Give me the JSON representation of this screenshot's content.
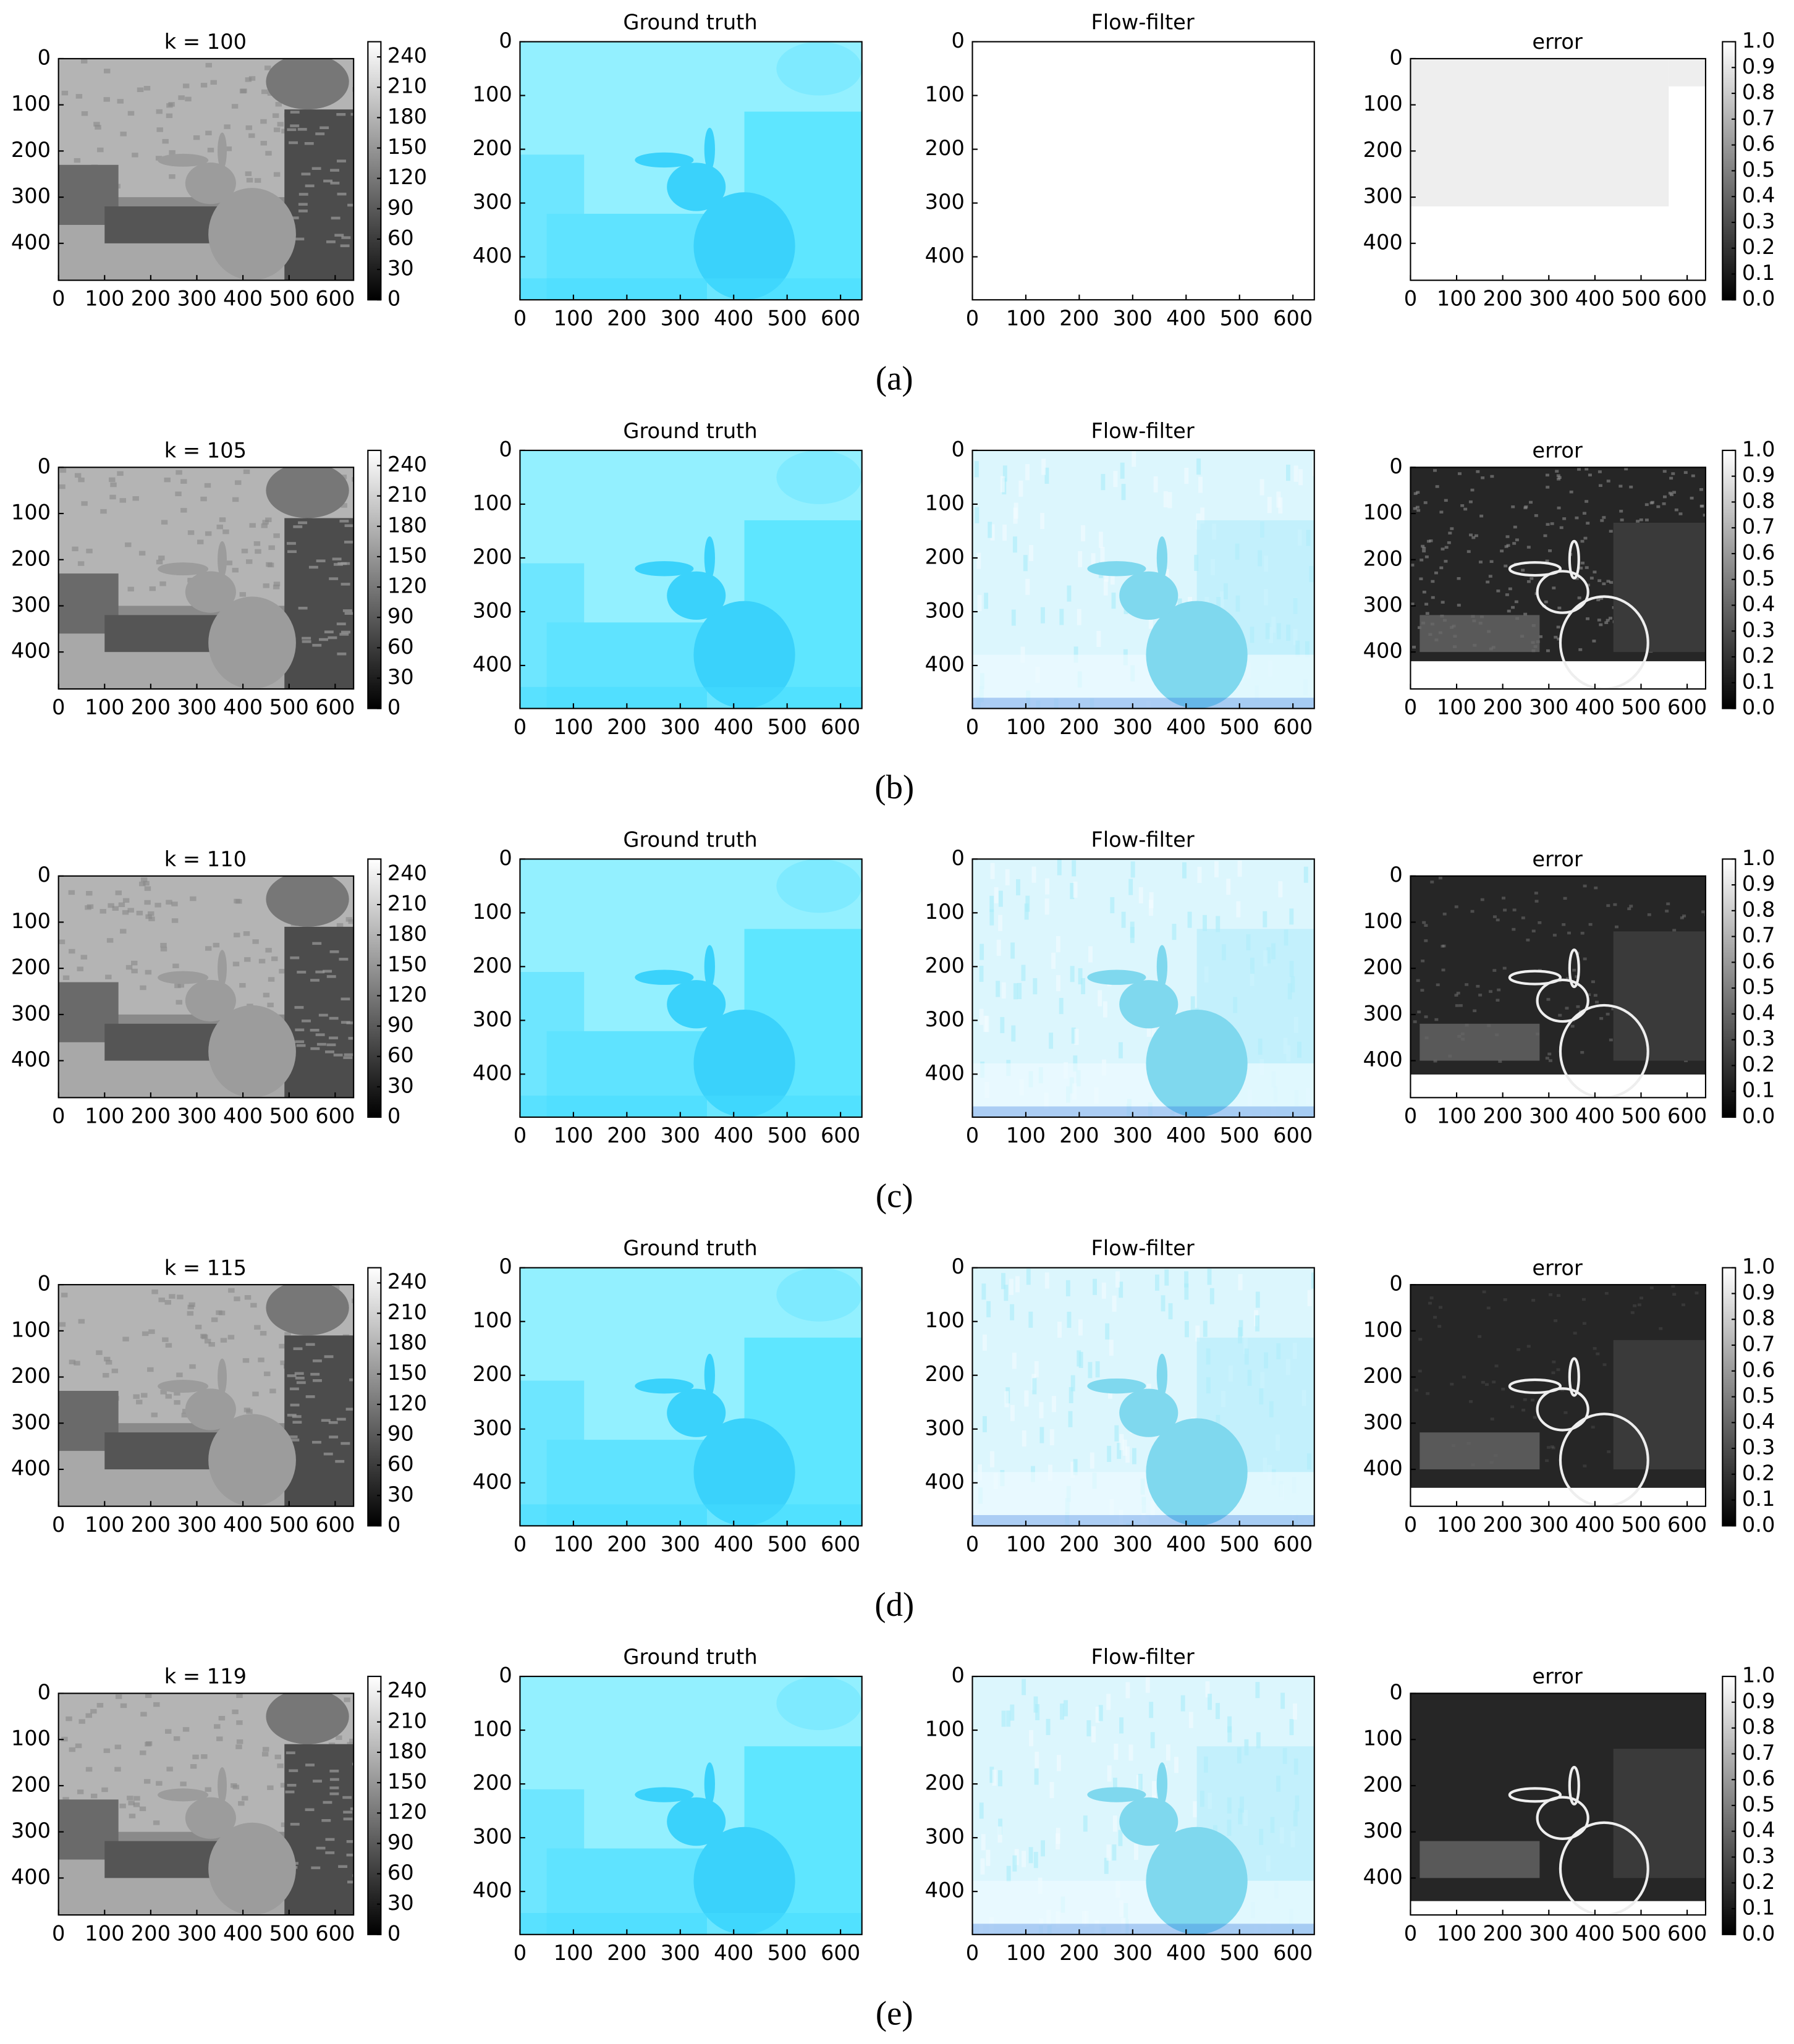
{
  "figure": {
    "image_xlim": [
      0,
      640
    ],
    "image_ylim": [
      480,
      0
    ],
    "xticks": [
      0,
      100,
      200,
      300,
      400,
      500,
      600
    ],
    "yticks": [
      0,
      100,
      200,
      300,
      400
    ],
    "intensity_colorbar": {
      "lim": [
        0,
        255
      ],
      "ticks": [
        0,
        30,
        60,
        90,
        120,
        150,
        180,
        210,
        240
      ]
    },
    "error_colorbar": {
      "lim": [
        0,
        1
      ],
      "ticks": [
        {
          "value": 0,
          "label": "0.0"
        },
        {
          "value": 0.1,
          "label": "0.1"
        },
        {
          "value": 0.2,
          "label": "0.2"
        },
        {
          "value": 0.3,
          "label": "0.3"
        },
        {
          "value": 0.4,
          "label": "0.4"
        },
        {
          "value": 0.5,
          "label": "0.5"
        },
        {
          "value": 0.6,
          "label": "0.6"
        },
        {
          "value": 0.7,
          "label": "0.7"
        },
        {
          "value": 0.8,
          "label": "0.8"
        },
        {
          "value": 0.9,
          "label": "0.9"
        },
        {
          "value": 1,
          "label": "1.0"
        }
      ]
    },
    "rows": [
      {
        "title": "k = 100",
        "panel_titles": [
          "Ground truth",
          "Flow-filter",
          "error"
        ],
        "caption": "(a)"
      },
      {
        "title": "k = 105",
        "panel_titles": [
          "Ground truth",
          "Flow-filter",
          "error"
        ],
        "caption": "(b)"
      },
      {
        "title": "k = 110",
        "panel_titles": [
          "Ground truth",
          "Flow-filter",
          "error"
        ],
        "caption": "(c)"
      },
      {
        "title": "k = 115",
        "panel_titles": [
          "Ground truth",
          "Flow-filter",
          "error"
        ],
        "caption": "(d)"
      },
      {
        "title": "k = 119",
        "panel_titles": [
          "Ground truth",
          "Flow-filter",
          "error"
        ],
        "caption": "(e)"
      }
    ]
  }
}
